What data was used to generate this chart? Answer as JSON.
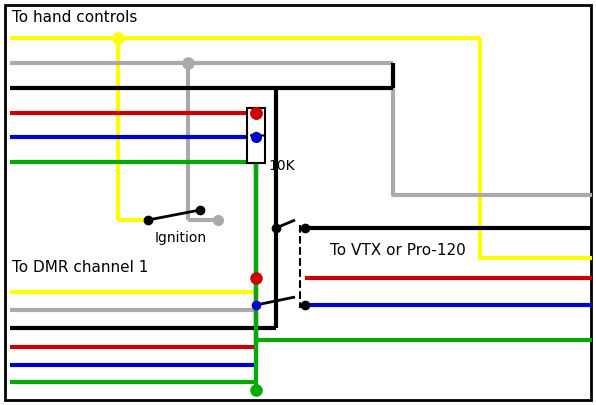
{
  "bg_color": "#ffffff",
  "title_hand": "To hand controls",
  "title_dmr": "To DMR channel 1",
  "title_vtx": "To VTX or Pro-120",
  "label_ignition": "Ignition",
  "label_10k": "10K",
  "figsize": [
    5.96,
    4.05
  ],
  "dpi": 100,
  "wire_colors": {
    "yellow": "#ffff00",
    "gray": "#aaaaaa",
    "black": "#000000",
    "red": "#cc0000",
    "blue": "#0000cc",
    "green": "#00aa00"
  }
}
